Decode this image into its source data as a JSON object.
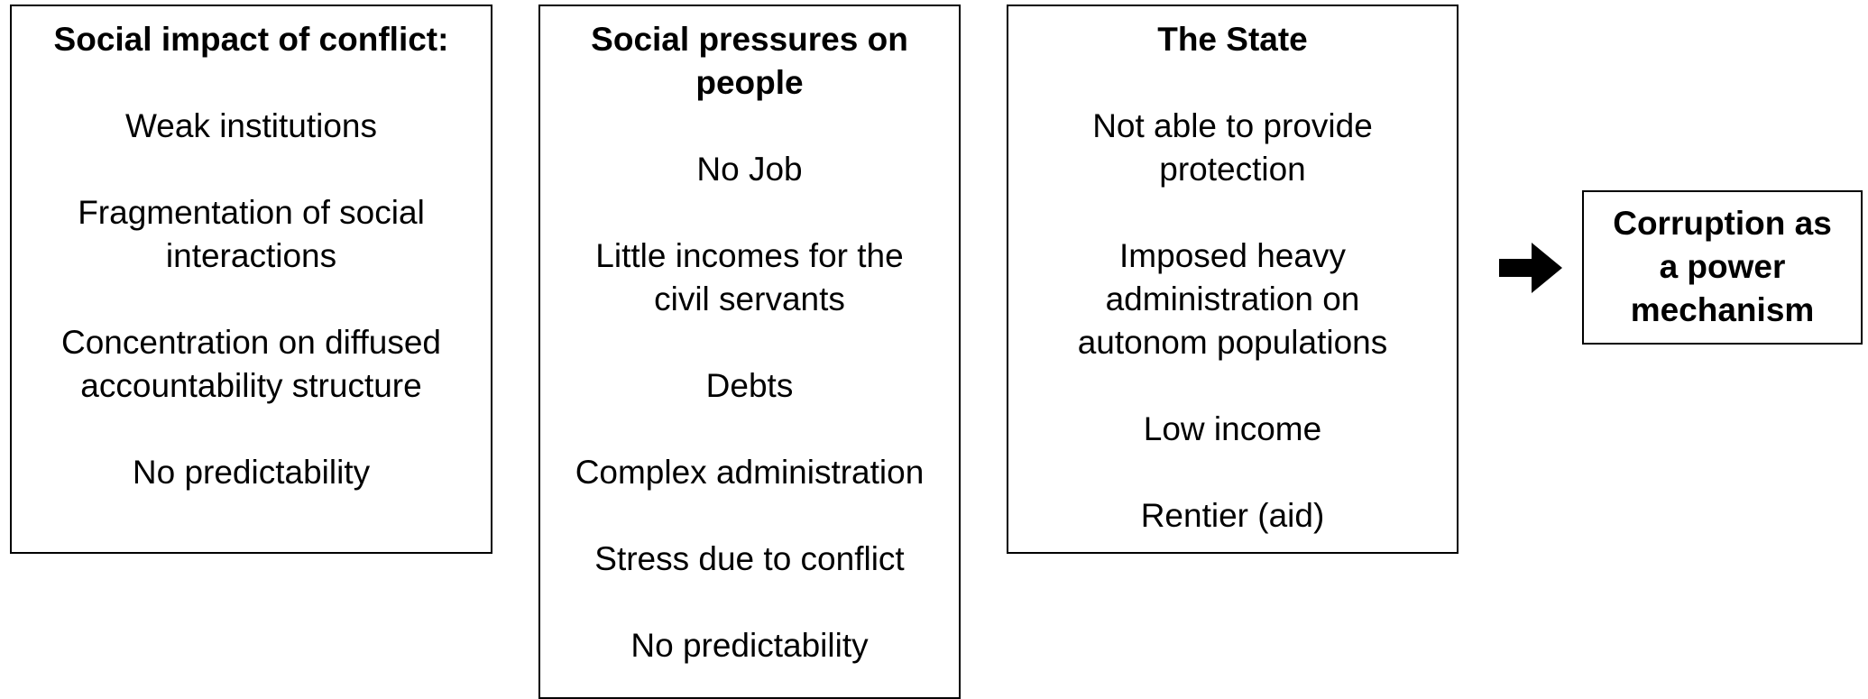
{
  "columns": [
    {
      "title": [
        "Social impact of conflict:"
      ],
      "items": [
        [
          "Weak institutions"
        ],
        [
          "Fragmentation of social",
          "interactions"
        ],
        [
          "Concentration on diffused",
          "accountability structure"
        ],
        [
          "No predictability"
        ]
      ]
    },
    {
      "title": [
        "Social pressures on",
        "people"
      ],
      "items": [
        [
          "No Job"
        ],
        [
          "Little incomes for the",
          "civil servants"
        ],
        [
          "Debts"
        ],
        [
          "Complex administration"
        ],
        [
          "Stress due to conflict"
        ],
        [
          "No predictability"
        ]
      ]
    },
    {
      "title": [
        "The State"
      ],
      "items": [
        [
          "Not able to provide",
          "protection"
        ],
        [
          "Imposed heavy",
          "administration on",
          "autonom populations"
        ],
        [
          "Low income"
        ],
        [
          "Rentier (aid)"
        ]
      ]
    }
  ],
  "result": [
    "Corruption as",
    "a power",
    "mechanism"
  ]
}
